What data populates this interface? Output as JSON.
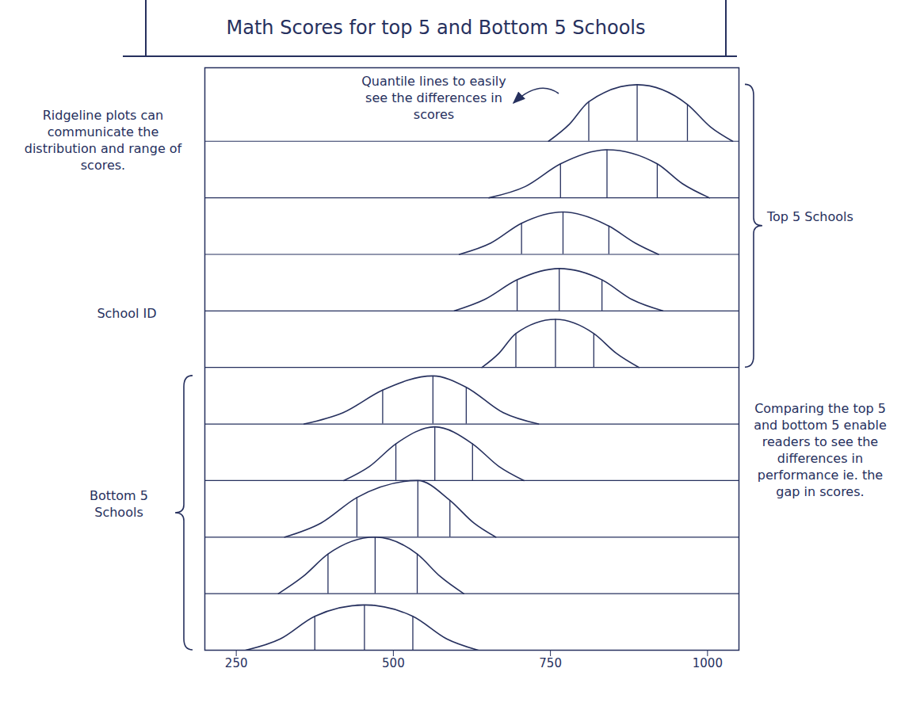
{
  "chart_data": {
    "type": "ridgeline",
    "title": "Math Scores for top 5 and Bottom 5 Schools",
    "ylabel": "School ID",
    "color": "#26305e",
    "xlim": [
      200,
      1050
    ],
    "xticks": [
      250,
      500,
      750,
      1000
    ],
    "tick_labels": "x",
    "annotations": [
      "Ridgeline plots can communicate the distribution and range of scores.",
      "Quantile lines to easily see the differences in scores",
      "Comparing the top 5 and bottom 5 enable readers to see the differences in performance ie. the gap in scores."
    ],
    "series": [
      {
        "name": "Top 5 Schools",
        "schools": [
          {
            "x": [
              747,
              780,
              811,
              888,
              968,
              1005,
              1040
            ],
            "density": [
              0,
              0.3,
              0.7,
              1.0,
              0.65,
              0.25,
              0
            ],
            "quantiles": [
              811,
              888,
              968
            ]
          },
          {
            "x": [
              652,
              710,
              766,
              840,
              920,
              960,
              1003
            ],
            "density": [
              0,
              0.2,
              0.6,
              0.85,
              0.6,
              0.25,
              0
            ],
            "quantiles": [
              766,
              840,
              920
            ]
          },
          {
            "x": [
              605,
              655,
              704,
              770,
              843,
              885,
              922
            ],
            "density": [
              0,
              0.2,
              0.55,
              0.75,
              0.5,
              0.2,
              0
            ],
            "quantiles": [
              704,
              770,
              843
            ]
          },
          {
            "x": [
              597,
              645,
              697,
              764,
              832,
              880,
              929
            ],
            "density": [
              0,
              0.2,
              0.55,
              0.75,
              0.55,
              0.2,
              0
            ],
            "quantiles": [
              697,
              764,
              832
            ]
          },
          {
            "x": [
              641,
              668,
              695,
              758,
              819,
              855,
              891
            ],
            "density": [
              0,
              0.25,
              0.6,
              0.85,
              0.6,
              0.25,
              0
            ],
            "quantiles": [
              695,
              758,
              819
            ]
          }
        ]
      },
      {
        "name": "Bottom 5 Schools",
        "schools": [
          {
            "x": [
              358,
              420,
              483,
              563,
              616,
              675,
              731
            ],
            "density": [
              0,
              0.2,
              0.6,
              0.85,
              0.65,
              0.2,
              0
            ],
            "quantiles": [
              483,
              563,
              616
            ]
          },
          {
            "x": [
              421,
              462,
              504,
              566,
              626,
              668,
              708
            ],
            "density": [
              0,
              0.25,
              0.65,
              0.95,
              0.65,
              0.25,
              0
            ],
            "quantiles": [
              504,
              566,
              626
            ]
          },
          {
            "x": [
              327,
              385,
              442,
              539,
              590,
              628,
              663
            ],
            "density": [
              0,
              0.25,
              0.7,
              1.0,
              0.65,
              0.25,
              0
            ],
            "quantiles": [
              442,
              539,
              590
            ]
          },
          {
            "x": [
              317,
              356,
              396,
              471,
              538,
              575,
              612
            ],
            "density": [
              0,
              0.3,
              0.7,
              1.0,
              0.7,
              0.3,
              0
            ],
            "quantiles": [
              396,
              471,
              538
            ]
          },
          {
            "x": [
              265,
              320,
              375,
              454,
              531,
              585,
              635
            ],
            "density": [
              0,
              0.2,
              0.6,
              0.8,
              0.6,
              0.2,
              0
            ],
            "quantiles": [
              375,
              454,
              531
            ]
          }
        ]
      }
    ]
  }
}
